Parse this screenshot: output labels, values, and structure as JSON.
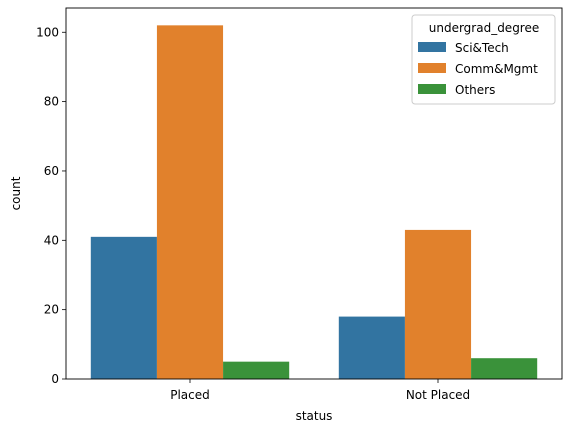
{
  "chart_data": {
    "type": "bar",
    "title": "",
    "xlabel": "status",
    "ylabel": "count",
    "categories": [
      "Placed",
      "Not Placed"
    ],
    "series": [
      {
        "name": "Sci&Tech",
        "values": [
          41,
          18
        ],
        "color": "#3274a1"
      },
      {
        "name": "Comm&Mgmt",
        "values": [
          102,
          43
        ],
        "color": "#e1812c"
      },
      {
        "name": "Others",
        "values": [
          5,
          6
        ],
        "color": "#3a923a"
      }
    ],
    "ylim": [
      0,
      107
    ],
    "yticks": [
      0,
      20,
      40,
      60,
      80,
      100
    ],
    "grid": false,
    "legend": {
      "title": "undergrad_degree",
      "placement": "top-right"
    }
  }
}
